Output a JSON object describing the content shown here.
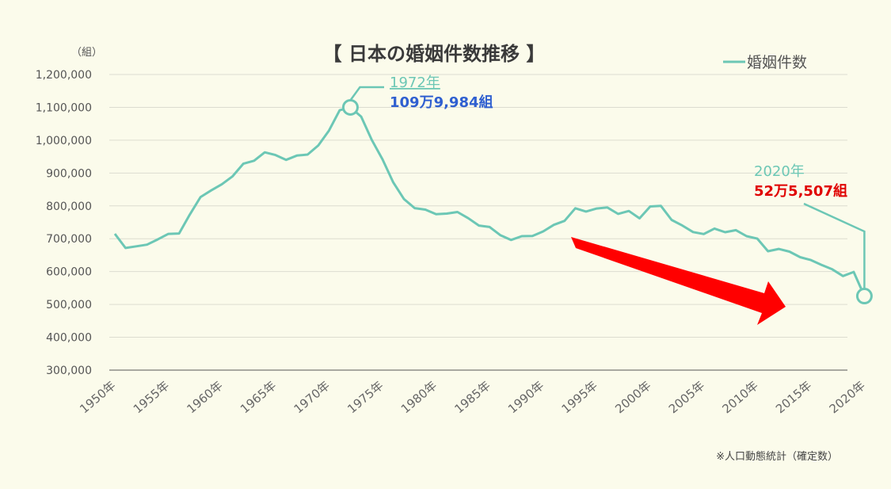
{
  "title": "【 日本の婚姻件数推移 】",
  "unit_label": "（組）",
  "legend": {
    "label": "婚姻件数",
    "color": "#6cc7b5"
  },
  "note": "※人口動態統計（確定数）",
  "annotations": {
    "peak": {
      "year_label": "1972年",
      "value_label": "109万9,984組"
    },
    "latest": {
      "year_label": "2020年",
      "value_label": "52万5,507組"
    }
  },
  "colors": {
    "line": "#6cc7b5",
    "arrow": "#ff0000",
    "peak_text": "#2f5fd0",
    "latest_text": "#e00000",
    "background": "#fbfbeb"
  },
  "chart_data": {
    "type": "line",
    "title": "【 日本の婚姻件数推移 】",
    "xlabel": "",
    "ylabel": "（組）",
    "ylim": [
      300000,
      1200000
    ],
    "y_ticks": [
      300000,
      400000,
      500000,
      600000,
      700000,
      800000,
      900000,
      1000000,
      1100000,
      1200000
    ],
    "y_tick_labels": [
      "300,000",
      "400,000",
      "500,000",
      "600,000",
      "700,000",
      "800,000",
      "900,000",
      "1,000,000",
      "1,100,000",
      "1,200,000"
    ],
    "x_tick_labels": [
      "1950年",
      "1955年",
      "1960年",
      "1965年",
      "1970年",
      "1975年",
      "1980年",
      "1985年",
      "1990年",
      "1995年",
      "2000年",
      "2005年",
      "2010年",
      "2015年",
      "2020年"
    ],
    "grid": true,
    "legend_position": "top-right",
    "series": [
      {
        "name": "婚姻件数",
        "x": [
          1950,
          1951,
          1952,
          1953,
          1954,
          1955,
          1956,
          1957,
          1958,
          1959,
          1960,
          1961,
          1962,
          1963,
          1964,
          1965,
          1966,
          1967,
          1968,
          1969,
          1970,
          1971,
          1972,
          1973,
          1974,
          1975,
          1976,
          1977,
          1978,
          1979,
          1980,
          1981,
          1982,
          1983,
          1984,
          1985,
          1986,
          1987,
          1988,
          1989,
          1990,
          1991,
          1992,
          1993,
          1994,
          1995,
          1996,
          1997,
          1998,
          1999,
          2000,
          2001,
          2002,
          2003,
          2004,
          2005,
          2006,
          2007,
          2008,
          2009,
          2010,
          2011,
          2012,
          2013,
          2014,
          2015,
          2016,
          2017,
          2018,
          2019,
          2020
        ],
        "values": [
          715081,
          671905,
          676995,
          682077,
          697809,
          714861,
          715934,
          773362,
          826902,
          847135,
          866115,
          890158,
          928341,
          937516,
          963130,
          954852,
          940120,
          953096,
          956312,
          984142,
          1029405,
          1091229,
          1099984,
          1071923,
          1000455,
          941628,
          871543,
          821029,
          793257,
          788505,
          774702,
          776531,
          781252,
          762552,
          739991,
          735850,
          710962,
          696173,
          707716,
          708316,
          722138,
          742264,
          754441,
          792658,
          782738,
          791888,
          795080,
          775651,
          784595,
          762028,
          798138,
          799999,
          757331,
          740191,
          720417,
          714265,
          730971,
          719822,
          726106,
          707734,
          700214,
          661895,
          668869,
          660613,
          643749,
          635156,
          620531,
          606866,
          586481,
          599007,
          525507
        ]
      }
    ],
    "annotations": [
      {
        "x": 1972,
        "y": 1099984,
        "label_year": "1972年",
        "label_value": "109万9,984組"
      },
      {
        "x": 2020,
        "y": 525507,
        "label_year": "2020年",
        "label_value": "52万5,507組"
      }
    ]
  }
}
